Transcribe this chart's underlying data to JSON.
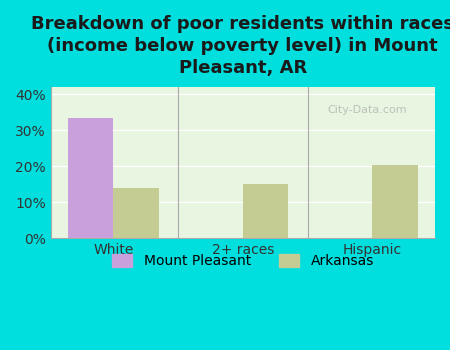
{
  "title": "Breakdown of poor residents within races\n(income below poverty level) in Mount\nPleasant, AR",
  "categories": [
    "White",
    "2+ races",
    "Hispanic"
  ],
  "mount_pleasant_values": [
    33.5,
    0,
    0
  ],
  "arkansas_values": [
    14.0,
    15.2,
    20.3
  ],
  "mp_color": "#c9a0dc",
  "ar_color": "#c5cc93",
  "bg_color": "#00dede",
  "plot_bg_color": "#e8f5e0",
  "ylim": [
    0,
    42
  ],
  "yticks": [
    0,
    10,
    20,
    30,
    40
  ],
  "ytick_labels": [
    "0%",
    "10%",
    "20%",
    "30%",
    "40%"
  ],
  "legend_labels": [
    "Mount Pleasant",
    "Arkansas"
  ],
  "bar_width": 0.35,
  "title_fontsize": 13,
  "watermark": "City-Data.com",
  "grid_color": "#ffffff"
}
